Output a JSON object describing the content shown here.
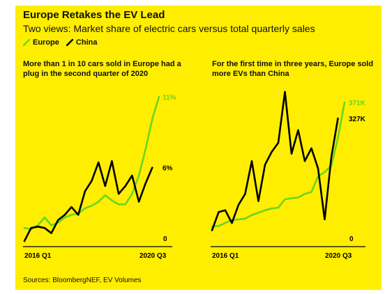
{
  "header": {
    "title": "Europe Retakes the EV Lead",
    "subtitle": "Two views: Market share of electric cars versus total quarterly sales"
  },
  "legend": {
    "items": [
      {
        "label": "Europe",
        "color": "#6ad51f"
      },
      {
        "label": "China",
        "color": "#000000"
      }
    ]
  },
  "source": "Sources: BloombergNEF, EV Volumes",
  "chart_data": [
    {
      "type": "line",
      "title": "More than 1 in 10 cars sold in Europe had a plug in the second quarter of 2020",
      "x_tick_labels": [
        "2016 Q1",
        "2020 Q3"
      ],
      "y_zero_label": "0",
      "end_labels": {
        "Europe": "11%",
        "China": "6%"
      },
      "ylim": [
        0,
        11.8
      ],
      "series": [
        {
          "name": "Europe",
          "color": "#6ad51f",
          "values": [
            1.0,
            0.9,
            1.2,
            1.8,
            1.2,
            1.4,
            1.8,
            2.0,
            2.1,
            2.5,
            2.7,
            3.0,
            3.5,
            3.1,
            2.8,
            2.8,
            3.6,
            5.0,
            7.0,
            9.3,
            11.0
          ]
        },
        {
          "name": "China",
          "color": "#000000",
          "values": [
            0.0,
            1.0,
            1.1,
            1.0,
            0.6,
            1.6,
            2.0,
            2.6,
            2.0,
            3.8,
            4.6,
            6.0,
            4.2,
            6.1,
            3.6,
            4.2,
            5.0,
            3.0,
            4.4,
            5.6
          ]
        }
      ]
    },
    {
      "type": "line",
      "title": "For the first time in three years, Europe sold more EVs than China",
      "x_tick_labels": [
        "2016 Q1",
        "2020 Q3"
      ],
      "y_zero_label": "0",
      "end_labels": {
        "Europe": "371K",
        "China": "327K"
      },
      "ylim": [
        0,
        415
      ],
      "series": [
        {
          "name": "Europe",
          "color": "#6ad51f",
          "values": [
            30,
            32,
            40,
            48,
            50,
            52,
            62,
            68,
            75,
            80,
            82,
            105,
            108,
            110,
            120,
            125,
            168,
            180,
            197,
            274,
            371
          ]
        },
        {
          "name": "China",
          "color": "#000000",
          "values": [
            20,
            70,
            75,
            40,
            90,
            120,
            210,
            100,
            200,
            235,
            260,
            400,
            230,
            295,
            210,
            245,
            190,
            50,
            220,
            327
          ]
        }
      ]
    }
  ]
}
